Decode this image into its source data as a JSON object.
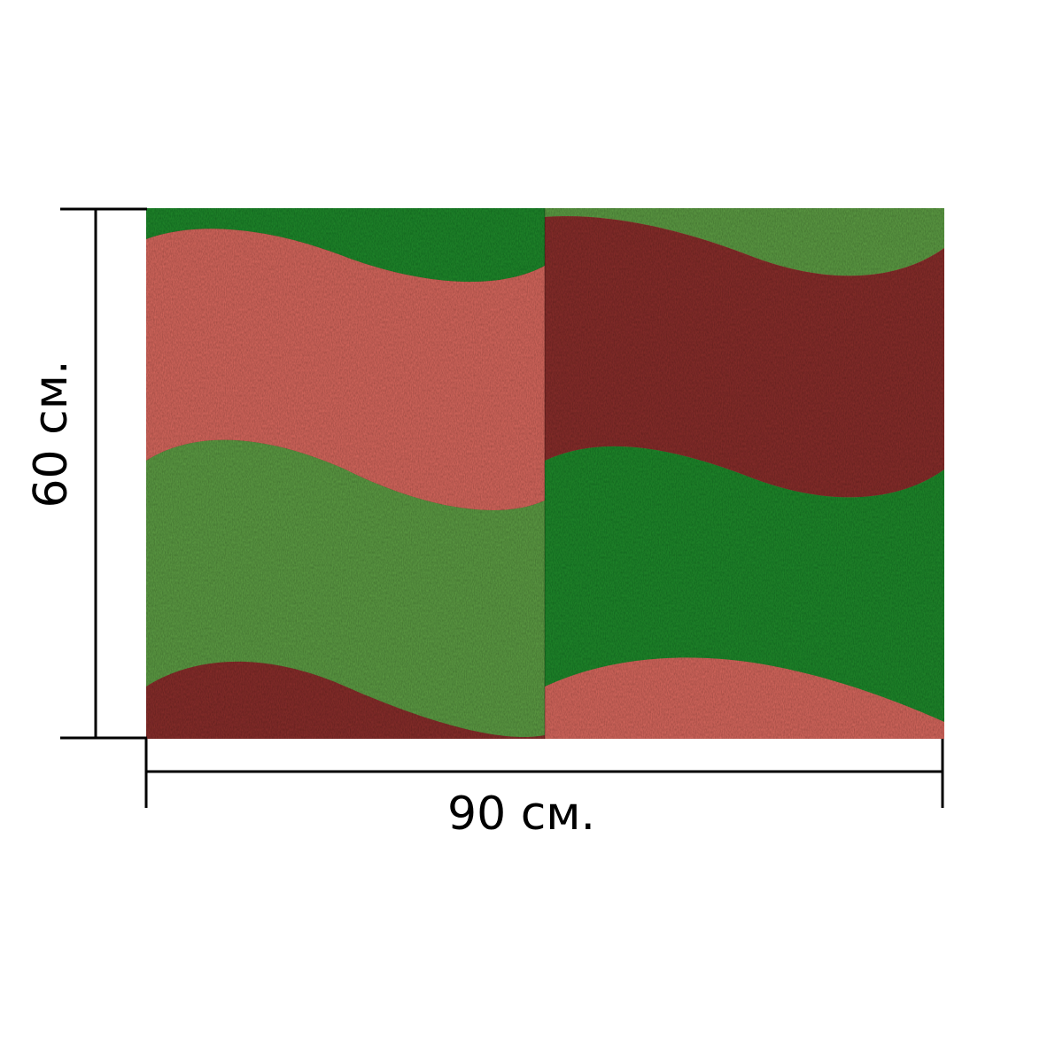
{
  "product": {
    "width_label": "90 см.",
    "height_label": "60 см.",
    "pattern": "wavy-stripes-denim-texture",
    "colors": {
      "light_green": "#5e9e45",
      "dark_green": "#1f8a2c",
      "light_red": "#d9695f",
      "dark_red": "#8a2f2c"
    }
  }
}
